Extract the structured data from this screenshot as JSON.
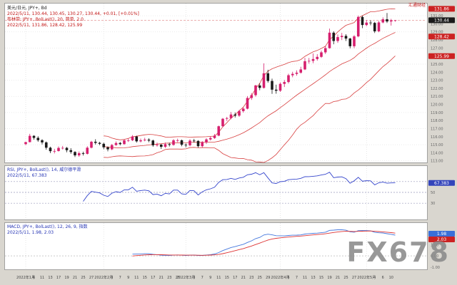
{
  "page": {
    "watermark": "FX678",
    "brand": "汇通财经"
  },
  "main": {
    "title": "美元/日元, JPY+, Bd",
    "quote_line": "2022/5/11, 130.44, 130.45, 130.27, 130.44, +0.01, [+0.01%]",
    "boll_line": "布林带: JPY+, BolLast(), 20, 简单, 2.0",
    "boll_values": "2022/5/11, 131.86, 128.42, 125.99",
    "badges": [
      {
        "label": "131.86",
        "value": 131.86,
        "color": "#cc2222"
      },
      {
        "label": "130.44",
        "value": 130.44,
        "color": "#1a1a1a"
      },
      {
        "label": "128.42",
        "value": 128.42,
        "color": "#cc2222"
      },
      {
        "label": "125.99",
        "value": 125.99,
        "color": "#cc2222"
      }
    ]
  },
  "rsi_panel": {
    "title": "RSI, JPY+, BolLast(), 14, 威尔德平滑",
    "value_line": "2022/5/11, 67.383",
    "badge": {
      "label": "67.383",
      "value": 67.383,
      "color": "#3344bb"
    }
  },
  "macd_panel": {
    "title": "MACD, JPY+, BolLast(), 12, 26, 9, 指数",
    "value_line": "2022/5/11, 1.98, 2.03",
    "badges": [
      {
        "label": "1.98",
        "value": 1.98,
        "color": "#3a6fd8"
      },
      {
        "label": "2.03",
        "value": 2.03,
        "color": "#cc2222"
      }
    ]
  },
  "chart_data": {
    "type": "candlestick",
    "symbol": "USD/JPY (JPY+)",
    "timeframe": "daily",
    "ylim": [
      112.8,
      132.6
    ],
    "y_tick_step": 1,
    "colors": {
      "up": "#d61f6e",
      "down": "#1a1a1a",
      "bands": "#d84040",
      "rsi": "#3344cc",
      "macd": "#4477dd",
      "signal": "#dd3333"
    },
    "dates": [
      "1/4",
      "1/5",
      "1/6",
      "1/7",
      "1/11",
      "1/12",
      "1/13",
      "1/14",
      "1/17",
      "1/18",
      "1/19",
      "1/20",
      "1/21",
      "1/24",
      "1/25",
      "1/26",
      "1/27",
      "1/28",
      "1/31",
      "2/1",
      "2/2",
      "2/3",
      "2/4",
      "2/7",
      "2/8",
      "2/9",
      "2/10",
      "2/11",
      "2/14",
      "2/15",
      "2/16",
      "2/17",
      "2/18",
      "2/21",
      "2/22",
      "2/23",
      "2/24",
      "2/25",
      "2/28",
      "3/1",
      "3/2",
      "3/3",
      "3/4",
      "3/7",
      "3/8",
      "3/9",
      "3/10",
      "3/11",
      "3/14",
      "3/15",
      "3/16",
      "3/17",
      "3/18",
      "3/21",
      "3/22",
      "3/23",
      "3/24",
      "3/25",
      "3/28",
      "3/29",
      "3/30",
      "3/31",
      "4/1",
      "4/4",
      "4/5",
      "4/6",
      "4/7",
      "4/8",
      "4/11",
      "4/12",
      "4/13",
      "4/14",
      "4/15",
      "4/18",
      "4/19",
      "4/20",
      "4/21",
      "4/22",
      "4/25",
      "4/26",
      "4/27",
      "4/28",
      "4/29",
      "5/2",
      "5/3",
      "5/4",
      "5/5",
      "5/6",
      "5/9",
      "5/10",
      "5/11"
    ],
    "ohlc": [
      [
        115.08,
        115.37,
        114.94,
        115.32
      ],
      [
        115.32,
        116.35,
        115.3,
        116.1
      ],
      [
        116.1,
        116.18,
        115.62,
        115.85
      ],
      [
        115.85,
        116.05,
        115.36,
        115.56
      ],
      [
        115.56,
        115.68,
        115.03,
        115.29
      ],
      [
        115.29,
        115.4,
        114.38,
        114.63
      ],
      [
        114.63,
        114.76,
        113.96,
        114.2
      ],
      [
        114.2,
        114.49,
        113.92,
        114.22
      ],
      [
        114.22,
        114.79,
        114.15,
        114.6
      ],
      [
        114.6,
        114.85,
        114.41,
        114.61
      ],
      [
        114.61,
        114.72,
        114.06,
        114.32
      ],
      [
        114.32,
        114.57,
        113.88,
        114.1
      ],
      [
        114.1,
        114.19,
        113.47,
        113.68
      ],
      [
        113.68,
        114.16,
        113.5,
        113.95
      ],
      [
        113.95,
        114.14,
        113.66,
        113.87
      ],
      [
        113.87,
        114.81,
        113.79,
        114.63
      ],
      [
        114.63,
        115.49,
        114.55,
        115.37
      ],
      [
        115.37,
        115.68,
        115.02,
        115.23
      ],
      [
        115.23,
        115.36,
        114.94,
        115.11
      ],
      [
        115.11,
        115.26,
        114.44,
        114.68
      ],
      [
        114.68,
        114.79,
        114.18,
        114.43
      ],
      [
        114.43,
        115.1,
        114.32,
        114.96
      ],
      [
        114.96,
        115.41,
        114.87,
        115.21
      ],
      [
        115.21,
        115.35,
        114.92,
        115.08
      ],
      [
        115.08,
        115.7,
        114.99,
        115.54
      ],
      [
        115.54,
        115.78,
        115.34,
        115.55
      ],
      [
        115.55,
        116.19,
        115.45,
        116.02
      ],
      [
        116.02,
        116.12,
        115.26,
        115.42
      ],
      [
        115.42,
        115.76,
        115.29,
        115.55
      ],
      [
        115.55,
        115.86,
        115.42,
        115.63
      ],
      [
        115.63,
        115.79,
        115.31,
        115.52
      ],
      [
        115.52,
        115.63,
        114.74,
        114.93
      ],
      [
        114.93,
        115.26,
        114.76,
        115.01
      ],
      [
        115.01,
        115.09,
        114.48,
        114.74
      ],
      [
        114.74,
        115.27,
        114.6,
        115.07
      ],
      [
        115.07,
        115.24,
        114.78,
        114.98
      ],
      [
        114.98,
        115.7,
        114.88,
        115.55
      ],
      [
        115.55,
        115.75,
        115.32,
        115.55
      ],
      [
        115.55,
        115.64,
        114.81,
        115.0
      ],
      [
        115.0,
        115.15,
        114.68,
        114.93
      ],
      [
        114.93,
        115.68,
        114.8,
        115.51
      ],
      [
        115.51,
        115.73,
        115.27,
        115.47
      ],
      [
        115.47,
        115.56,
        114.64,
        114.82
      ],
      [
        114.82,
        115.45,
        114.66,
        115.31
      ],
      [
        115.31,
        115.81,
        115.1,
        115.66
      ],
      [
        115.66,
        116.02,
        115.52,
        115.83
      ],
      [
        115.83,
        116.34,
        115.73,
        116.13
      ],
      [
        116.13,
        117.37,
        116.05,
        117.29
      ],
      [
        117.29,
        118.31,
        117.18,
        118.22
      ],
      [
        118.22,
        118.45,
        117.95,
        118.3
      ],
      [
        118.3,
        119.05,
        118.16,
        118.75
      ],
      [
        118.75,
        119.0,
        118.38,
        118.61
      ],
      [
        118.61,
        119.32,
        118.46,
        119.17
      ],
      [
        119.17,
        119.63,
        118.98,
        119.47
      ],
      [
        119.47,
        121.03,
        119.38,
        120.8
      ],
      [
        120.8,
        121.41,
        120.56,
        121.15
      ],
      [
        121.15,
        122.44,
        120.96,
        122.35
      ],
      [
        122.35,
        122.61,
        121.76,
        122.05
      ],
      [
        122.05,
        125.1,
        121.97,
        123.86
      ],
      [
        123.86,
        124.3,
        122.7,
        122.91
      ],
      [
        122.91,
        123.2,
        121.31,
        121.83
      ],
      [
        121.83,
        122.45,
        121.33,
        121.7
      ],
      [
        121.7,
        122.73,
        121.55,
        122.55
      ],
      [
        122.55,
        123.03,
        122.16,
        122.78
      ],
      [
        122.78,
        123.8,
        122.6,
        123.62
      ],
      [
        123.62,
        124.05,
        123.37,
        123.79
      ],
      [
        123.79,
        124.23,
        123.56,
        123.94
      ],
      [
        123.94,
        124.67,
        123.81,
        124.34
      ],
      [
        124.34,
        125.77,
        124.26,
        125.36
      ],
      [
        125.36,
        125.76,
        125.06,
        125.4
      ],
      [
        125.4,
        126.32,
        125.11,
        125.63
      ],
      [
        125.63,
        126.24,
        125.43,
        125.9
      ],
      [
        125.9,
        126.68,
        125.77,
        126.46
      ],
      [
        126.46,
        127.26,
        126.26,
        126.98
      ],
      [
        126.98,
        129.41,
        126.92,
        128.9
      ],
      [
        128.9,
        129.08,
        127.46,
        127.87
      ],
      [
        127.87,
        128.68,
        127.64,
        128.35
      ],
      [
        128.35,
        128.87,
        127.98,
        128.5
      ],
      [
        128.5,
        128.71,
        127.87,
        128.17
      ],
      [
        128.17,
        128.26,
        126.95,
        127.22
      ],
      [
        127.22,
        128.6,
        126.98,
        128.44
      ],
      [
        128.44,
        131.02,
        128.33,
        130.85
      ],
      [
        130.85,
        131.01,
        129.46,
        129.85
      ],
      [
        129.85,
        130.47,
        129.7,
        130.15
      ],
      [
        130.15,
        130.42,
        129.82,
        130.11
      ],
      [
        130.11,
        130.24,
        128.86,
        129.07
      ],
      [
        129.07,
        130.36,
        128.95,
        130.17
      ],
      [
        130.17,
        130.8,
        130.06,
        130.56
      ],
      [
        130.56,
        131.34,
        130.1,
        130.29
      ],
      [
        130.29,
        130.61,
        129.78,
        130.43
      ],
      [
        130.44,
        130.45,
        130.27,
        130.44
      ]
    ],
    "x_labels": [
      {
        "i": 0,
        "t": "2022年1月"
      },
      {
        "i": 2,
        "t": "6"
      },
      {
        "i": 4,
        "t": "11"
      },
      {
        "i": 6,
        "t": "13"
      },
      {
        "i": 8,
        "t": "17"
      },
      {
        "i": 10,
        "t": "19"
      },
      {
        "i": 12,
        "t": "21"
      },
      {
        "i": 14,
        "t": "25"
      },
      {
        "i": 16,
        "t": "27"
      },
      {
        "i": 19,
        "t": "2022年2月"
      },
      {
        "i": 21,
        "t": "3"
      },
      {
        "i": 23,
        "t": "7"
      },
      {
        "i": 25,
        "t": "9"
      },
      {
        "i": 27,
        "t": "11"
      },
      {
        "i": 29,
        "t": "15"
      },
      {
        "i": 31,
        "t": "17"
      },
      {
        "i": 33,
        "t": "21"
      },
      {
        "i": 35,
        "t": "23"
      },
      {
        "i": 37,
        "t": "25"
      },
      {
        "i": 39,
        "t": "2022年3月"
      },
      {
        "i": 41,
        "t": "3"
      },
      {
        "i": 43,
        "t": "7"
      },
      {
        "i": 45,
        "t": "9"
      },
      {
        "i": 47,
        "t": "11"
      },
      {
        "i": 49,
        "t": "15"
      },
      {
        "i": 51,
        "t": "17"
      },
      {
        "i": 53,
        "t": "21"
      },
      {
        "i": 55,
        "t": "23"
      },
      {
        "i": 57,
        "t": "25"
      },
      {
        "i": 59,
        "t": "29"
      },
      {
        "i": 62,
        "t": "2022年4月"
      },
      {
        "i": 64,
        "t": "5"
      },
      {
        "i": 66,
        "t": "7"
      },
      {
        "i": 68,
        "t": "11"
      },
      {
        "i": 70,
        "t": "13"
      },
      {
        "i": 72,
        "t": "15"
      },
      {
        "i": 74,
        "t": "19"
      },
      {
        "i": 76,
        "t": "21"
      },
      {
        "i": 78,
        "t": "25"
      },
      {
        "i": 80,
        "t": "27"
      },
      {
        "i": 83,
        "t": "2022年5月"
      },
      {
        "i": 85,
        "t": "4"
      },
      {
        "i": 87,
        "t": "6"
      },
      {
        "i": 89,
        "t": "10"
      }
    ],
    "indicators": {
      "bollinger": {
        "period": 20,
        "deviation": 2,
        "last": [
          131.86,
          128.42,
          125.99
        ]
      },
      "rsi": {
        "period": 14,
        "smoothing": "威尔德平滑",
        "last": 67.383,
        "levels": [
          30,
          50,
          70
        ],
        "ylim": [
          0,
          100
        ]
      },
      "macd": {
        "fast": 12,
        "slow": 26,
        "signal": 9,
        "mode": "指数",
        "last_macd": 1.98,
        "last_signal": 2.03,
        "ylim": [
          -1.2,
          3.0
        ]
      }
    }
  }
}
